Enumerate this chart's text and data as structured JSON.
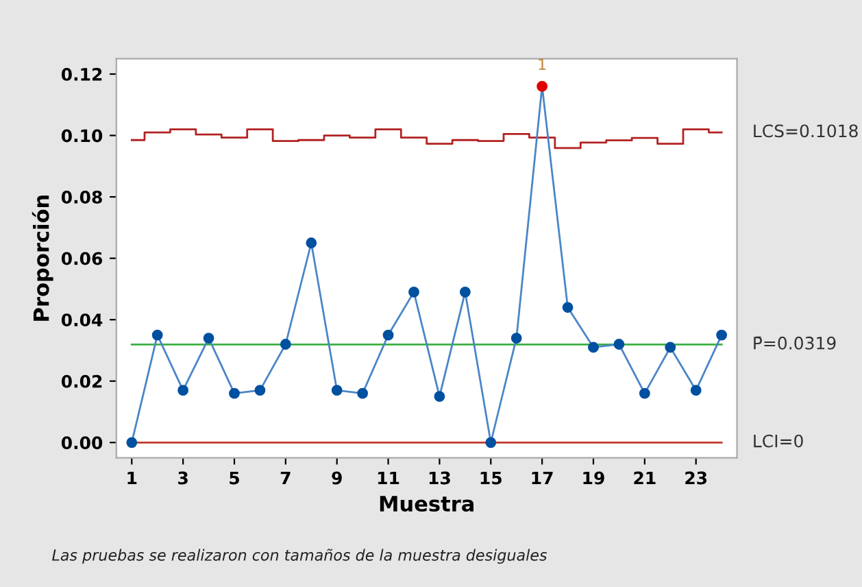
{
  "chart_data": {
    "type": "line",
    "xlabel": "Muestra",
    "ylabel": "Proporción",
    "x": [
      1,
      2,
      3,
      4,
      5,
      6,
      7,
      8,
      9,
      10,
      11,
      12,
      13,
      14,
      15,
      16,
      17,
      18,
      19,
      20,
      21,
      22,
      23,
      24
    ],
    "series": [
      {
        "type": "step",
        "name": "LCS=0.1018",
        "color": "#b22222",
        "marker": "none",
        "values": [
          0.0985,
          0.101,
          0.102,
          0.1003,
          0.0993,
          0.102,
          0.0982,
          0.0985,
          0.1,
          0.0993,
          0.102,
          0.0993,
          0.0973,
          0.0985,
          0.0982,
          0.1005,
          0.0993,
          0.0959,
          0.0977,
          0.0984,
          0.0992,
          0.0973,
          0.102,
          0.101
        ]
      },
      {
        "color": "#4a86c8",
        "marker": "circle",
        "colors": [
          "#0050a0",
          "#0050a0",
          "#0050a0",
          "#0050a0",
          "#0050a0",
          "#0050a0",
          "#0050a0",
          "#0050a0",
          "#0050a0",
          "#0050a0",
          "#0050a0",
          "#0050a0",
          "#0050a0",
          "#0050a0",
          "#0050a0",
          "#0050a0",
          "#e00000",
          "#0050a0",
          "#0050a0",
          "#0050a0",
          "#0050a0",
          "#0050a0",
          "#0050a0",
          "#0050a0"
        ],
        "values": [
          0,
          0.035,
          0.017,
          0.034,
          0.016,
          0.017,
          0.032,
          0.065,
          0.017,
          0.016,
          0.035,
          0.049,
          0.015,
          0.049,
          0,
          0.034,
          0.116,
          0.044,
          0.031,
          0.032,
          0.016,
          0.031,
          0.017,
          0.035
        ]
      }
    ],
    "ref_lines": [
      {
        "axis": "y",
        "value": 0.0319,
        "label": "P̄=0.0319",
        "color": "#3cb043"
      },
      {
        "axis": "y",
        "value": 0,
        "label": "LCI=0",
        "color": "#c0392b"
      }
    ],
    "annotations": [
      {
        "text": "1",
        "x": 17,
        "y": 0.116
      },
      "Las pruebas se realizaron con tamaños de la muestra desiguales"
    ],
    "xlim": [
      0.4,
      24.6
    ],
    "ylim": [
      -0.005,
      0.125
    ],
    "xticks": [
      1,
      3,
      5,
      7,
      9,
      11,
      13,
      15,
      17,
      19,
      21,
      23
    ],
    "yticks": [
      {
        "value": 0,
        "label": "0.00"
      },
      {
        "value": 0.02,
        "label": "0.02"
      },
      {
        "value": 0.04,
        "label": "0.04"
      },
      {
        "value": 0.06,
        "label": "0.06"
      },
      {
        "value": 0.08,
        "label": "0.08"
      },
      {
        "value": 0.1,
        "label": "0.10"
      },
      {
        "value": 0.12,
        "label": "0.12"
      }
    ],
    "grid": false,
    "legend": false
  }
}
